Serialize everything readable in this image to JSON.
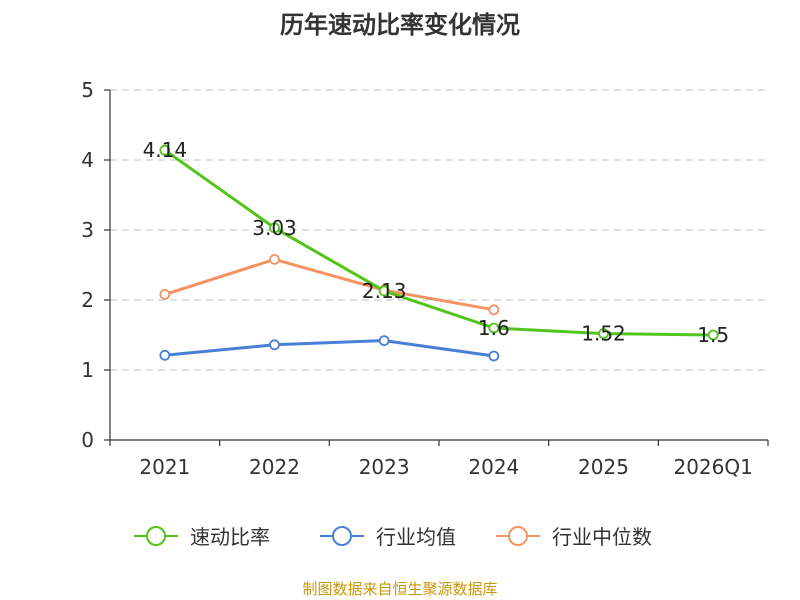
{
  "chart_data": {
    "type": "line",
    "title": "历年速动比率变化情况",
    "categories": [
      "2021",
      "2022",
      "2023",
      "2024",
      "2025",
      "2026Q1"
    ],
    "ylim": [
      0,
      5
    ],
    "yticks": [
      "0",
      "1",
      "2",
      "3",
      "4",
      "5"
    ],
    "grid": true,
    "legend_position": "bottom",
    "series": [
      {
        "name": "速动比率",
        "color": "#52c41a",
        "values": [
          4.14,
          3.03,
          2.13,
          1.6,
          1.52,
          1.5
        ],
        "labels": [
          "4.14",
          "3.03",
          "2.13",
          "1.6",
          "1.52",
          "1.5"
        ]
      },
      {
        "name": "行业均值",
        "color": "#4a7fd8",
        "values": [
          1.21,
          1.36,
          1.42,
          1.2,
          null,
          null
        ]
      },
      {
        "name": "行业中位数",
        "color": "#f59262",
        "values": [
          2.08,
          2.58,
          2.14,
          1.86,
          null,
          null
        ]
      }
    ],
    "source": "制图数据来自恒生聚源数据库"
  }
}
